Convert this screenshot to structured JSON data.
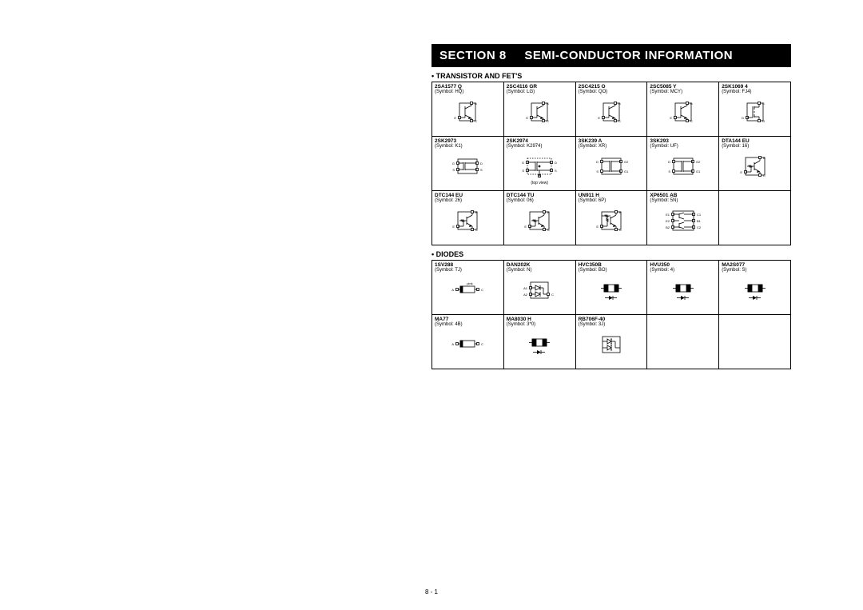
{
  "section": {
    "label": "SECTION 8",
    "title": "SEMI-CONDUCTOR INFORMATION"
  },
  "footer": "8 - 1",
  "groups": [
    {
      "heading": "• TRANSISTOR AND FET'S",
      "rows": [
        [
          {
            "name": "2SA1577 Q",
            "symbol": "(Symbol: HQ)",
            "schem": "bjt3"
          },
          {
            "name": "2SC4116 GR",
            "symbol": "(Symbol: LG)",
            "schem": "bjt3"
          },
          {
            "name": "2SC4215 O",
            "symbol": "(Symbol: QO)",
            "schem": "bjt3"
          },
          {
            "name": "2SC5085 Y",
            "symbol": "(Symbol: MCY)",
            "schem": "bjt3"
          },
          {
            "name": "2SK1069 4",
            "symbol": "(Symbol: FJ4)",
            "schem": "fet3"
          }
        ],
        [
          {
            "name": "2SK2973",
            "symbol": "(Symbol: K1)",
            "schem": "fet4"
          },
          {
            "name": "2SK2974",
            "symbol": "(Symbol: K2974)",
            "schem": "fet4top",
            "note": "(top view)"
          },
          {
            "name": "3SK239 A",
            "symbol": "(Symbol: XR)",
            "schem": "dualgate"
          },
          {
            "name": "3SK293",
            "symbol": "(Symbol: UF)",
            "schem": "dualgate"
          },
          {
            "name": "DTA144 EU",
            "symbol": "(Symbol: 16)",
            "schem": "digital_bjt"
          }
        ],
        [
          {
            "name": "DTC144 EU",
            "symbol": "(Symbol: 26)",
            "schem": "digital_bjt"
          },
          {
            "name": "DTC144 TU",
            "symbol": "(Symbol: 06)",
            "schem": "digital_bjt"
          },
          {
            "name": "UN911 H",
            "symbol": "(Symbol: 6P)",
            "schem": "digital_bjt2"
          },
          {
            "name": "XP6501 AB",
            "symbol": "(Symbol: 5N)",
            "schem": "dual_bjt6"
          },
          {
            "empty": true
          }
        ]
      ]
    },
    {
      "heading": "• DIODES",
      "rows": [
        [
          {
            "name": "1SV288",
            "symbol": "(Symbol: TJ)",
            "schem": "diode_pink",
            "note": "pink"
          },
          {
            "name": "DAN202K",
            "symbol": "(Symbol: N)",
            "schem": "dual_diode"
          },
          {
            "name": "HVC350B",
            "symbol": "(Symbol: BO)",
            "schem": "smd_diode"
          },
          {
            "name": "HVU350",
            "symbol": "(Symbol: 4)",
            "schem": "smd_diode"
          },
          {
            "name": "MA2S077",
            "symbol": "(Symbol: S)",
            "schem": "smd_diode"
          }
        ],
        [
          {
            "name": "MA77",
            "symbol": "(Symbol: 4B)",
            "schem": "diode_ac"
          },
          {
            "name": "MA8030 H",
            "symbol": "(Symbol: 3*0)",
            "schem": "smd_diode"
          },
          {
            "name": "RB706F-40",
            "symbol": "(Symbol: 3J)",
            "schem": "dual_schottky"
          },
          {
            "empty": true
          },
          {
            "empty": true
          }
        ]
      ]
    }
  ],
  "colors": {
    "stroke": "#000000",
    "bg": "#ffffff"
  }
}
